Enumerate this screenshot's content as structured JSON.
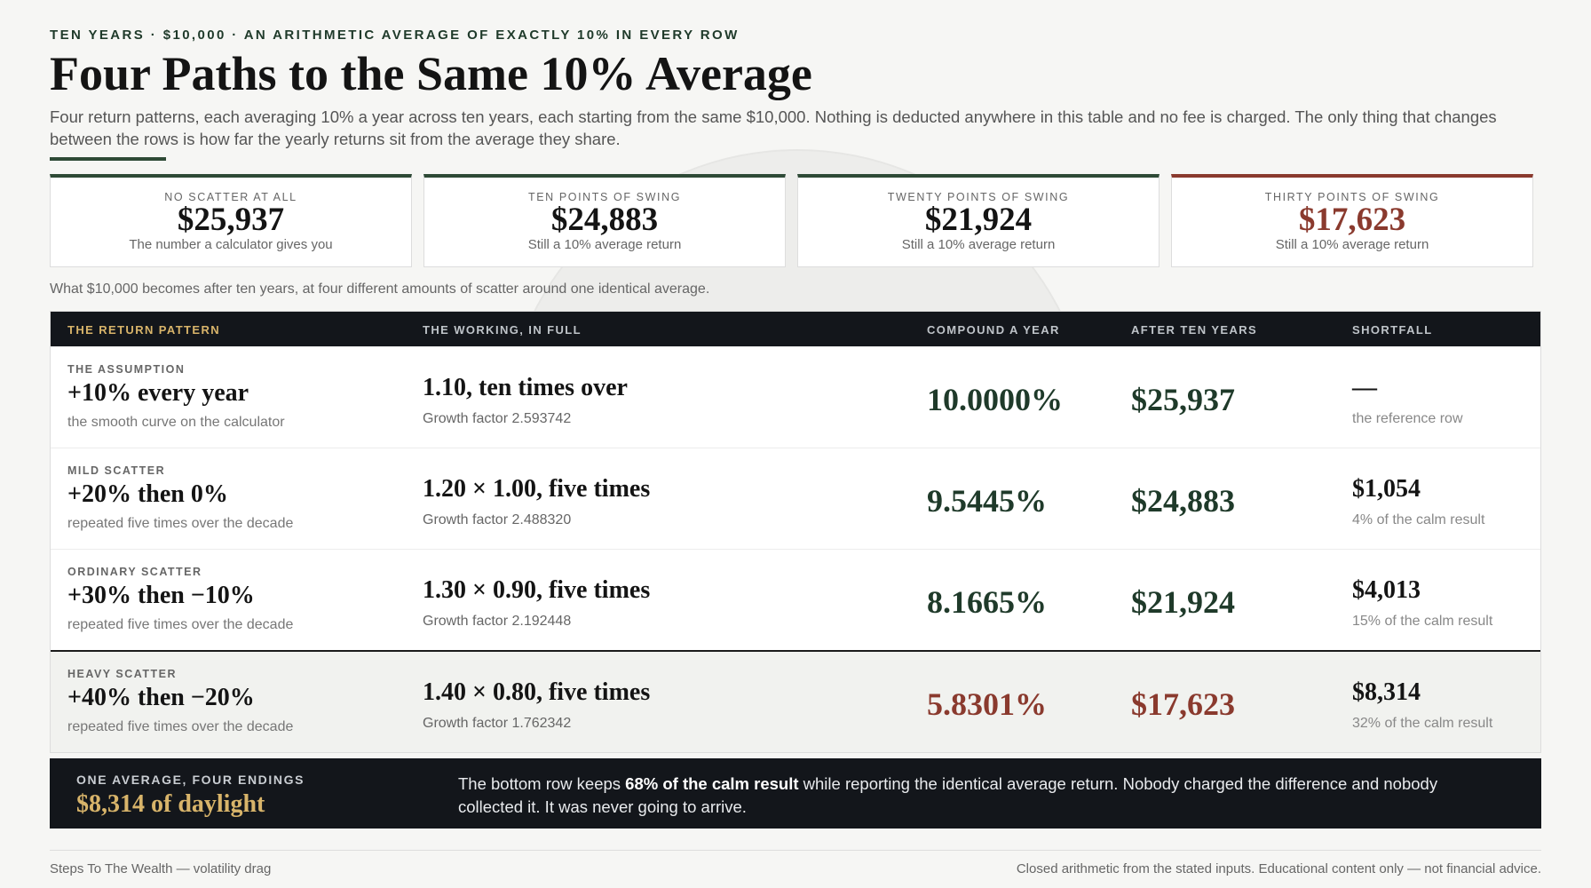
{
  "header": {
    "kicker": "TEN YEARS · $10,000 · AN ARITHMETIC AVERAGE OF EXACTLY 10% IN EVERY ROW",
    "title": "Four Paths to the Same 10% Average",
    "description": "Four return patterns, each averaging 10% a year across ten years, each starting from the same $10,000. Nothing is deducted anywhere in this table and no fee is charged. The only thing that changes between the rows is how far the yearly returns sit from the average they share."
  },
  "cards": [
    {
      "label": "NO SCATTER AT ALL",
      "value": "$25,937",
      "note": "The number a calculator gives you"
    },
    {
      "label": "TEN POINTS OF SWING",
      "value": "$24,883",
      "note": "Still a 10% average return"
    },
    {
      "label": "TWENTY POINTS OF SWING",
      "value": "$21,924",
      "note": "Still a 10% average return"
    },
    {
      "label": "THIRTY POINTS OF SWING",
      "value": "$17,623",
      "note": "Still a 10% average return"
    }
  ],
  "caption": "What $10,000 becomes after ten years, at four different amounts of scatter around one identical average.",
  "table": {
    "columns": [
      "THE RETURN PATTERN",
      "THE WORKING, IN FULL",
      "COMPOUND A YEAR",
      "AFTER TEN YEARS",
      "SHORTFALL"
    ],
    "rows": [
      {
        "label": "THE ASSUMPTION",
        "pattern": "+10% every year",
        "note": "the smooth curve on the calculator",
        "working": "1.10, ten times over",
        "factor": "Growth factor 2.593742",
        "rate": "10.0000%",
        "result": "$25,937",
        "shortfall": "—",
        "shortfall_note": "the reference row"
      },
      {
        "label": "MILD SCATTER",
        "pattern": "+20% then 0%",
        "note": "repeated five times over the decade",
        "working": "1.20 × 1.00, five times",
        "factor": "Growth factor 2.488320",
        "rate": "9.5445%",
        "result": "$24,883",
        "shortfall": "$1,054",
        "shortfall_note": "4% of the calm result"
      },
      {
        "label": "ORDINARY SCATTER",
        "pattern": "+30% then −10%",
        "note": "repeated five times over the decade",
        "working": "1.30 × 0.90, five times",
        "factor": "Growth factor 2.192448",
        "rate": "8.1665%",
        "result": "$21,924",
        "shortfall": "$4,013",
        "shortfall_note": "15% of the calm result"
      },
      {
        "label": "HEAVY SCATTER",
        "pattern": "+40% then −20%",
        "note": "repeated five times over the decade",
        "working": "1.40 × 0.80, five times",
        "factor": "Growth factor 1.762342",
        "rate": "5.8301%",
        "result": "$17,623",
        "shortfall": "$8,314",
        "shortfall_note": "32% of the calm result"
      }
    ]
  },
  "summary": {
    "kicker": "ONE AVERAGE, FOUR ENDINGS",
    "headline": "$8,314 of daylight",
    "text": [
      "The bottom row keeps ",
      "68% of the calm result",
      " while reporting the identical average return. Nobody charged the difference and nobody collected it. It was never going to arrive."
    ]
  },
  "footer": {
    "left": "Steps To The Wealth — volatility drag",
    "right": "Closed arithmetic from the stated inputs. Educational content only — not financial advice."
  }
}
